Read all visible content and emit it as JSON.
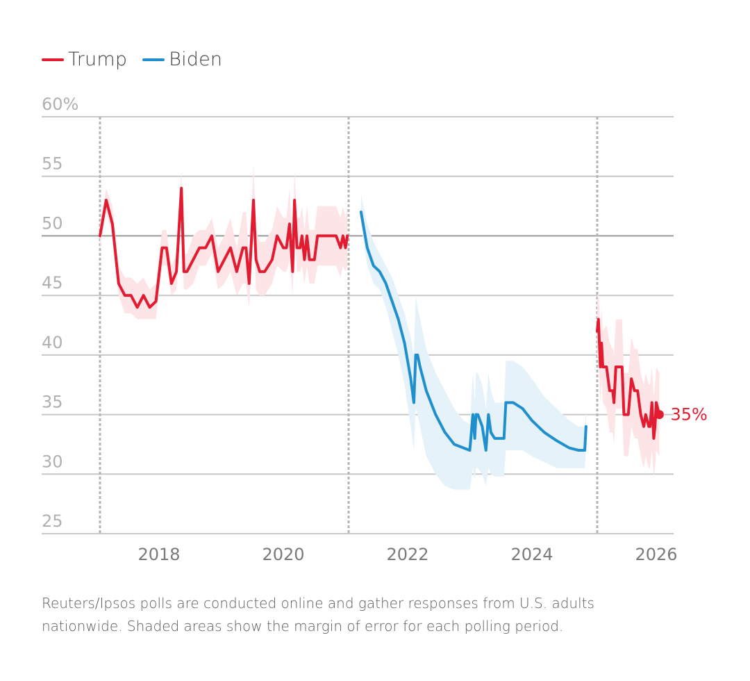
{
  "legend": {
    "items": [
      {
        "name": "Trump",
        "color": "#e31b31"
      },
      {
        "name": "Biden",
        "color": "#1f8fce"
      }
    ]
  },
  "footnote": "Reuters/Ipsos polls are conducted online and gather responses from U.S. adults nationwide. Shaded areas show the margin of error for each polling period.",
  "chart_data": {
    "type": "line",
    "title": "",
    "xlabel": "",
    "ylabel": "",
    "ylim": [
      25,
      60
    ],
    "xlim": [
      2016.9,
      2026.3
    ],
    "grid": true,
    "legend_position": "top-left",
    "y_ticks": [
      {
        "value": 60,
        "label": "60%"
      },
      {
        "value": 55,
        "label": "55"
      },
      {
        "value": 50,
        "label": "50"
      },
      {
        "value": 45,
        "label": "45"
      },
      {
        "value": 40,
        "label": "40"
      },
      {
        "value": 35,
        "label": "35"
      },
      {
        "value": 30,
        "label": "30"
      },
      {
        "value": 25,
        "label": "25"
      }
    ],
    "x_ticks": [
      {
        "value": 2018,
        "label": "2018"
      },
      {
        "value": 2020,
        "label": "2020"
      },
      {
        "value": 2022,
        "label": "2022"
      },
      {
        "value": 2024,
        "label": "2024"
      },
      {
        "value": 2026,
        "label": "2026"
      }
    ],
    "term_boundaries": [
      2017.05,
      2021.05,
      2025.05
    ],
    "end_label": {
      "series": "Trump",
      "text": "35%",
      "value": 35,
      "x": 2026.05
    },
    "series": [
      {
        "name": "Trump",
        "segment": "first-term",
        "color": "#e31b31",
        "band_color": "#fde5e7",
        "x": [
          2017.05,
          2017.15,
          2017.25,
          2017.35,
          2017.45,
          2017.55,
          2017.65,
          2017.75,
          2017.85,
          2017.95,
          2018.05,
          2018.12,
          2018.2,
          2018.28,
          2018.36,
          2018.4,
          2018.45,
          2018.55,
          2018.65,
          2018.75,
          2018.85,
          2018.95,
          2019.05,
          2019.15,
          2019.25,
          2019.35,
          2019.4,
          2019.45,
          2019.52,
          2019.56,
          2019.62,
          2019.7,
          2019.76,
          2019.82,
          2019.9,
          2020.0,
          2020.05,
          2020.1,
          2020.15,
          2020.18,
          2020.22,
          2020.27,
          2020.3,
          2020.34,
          2020.38,
          2020.42,
          2020.46,
          2020.5,
          2020.55,
          2020.62,
          2020.7,
          2020.78,
          2020.85,
          2020.92,
          2020.96,
          2021.0,
          2021.03
        ],
        "y": [
          50,
          53,
          51,
          46,
          45,
          45,
          44,
          45,
          44,
          44.5,
          49,
          49,
          46,
          47,
          54,
          47,
          47,
          48,
          49,
          49,
          50,
          47,
          48,
          49,
          47,
          49,
          49,
          46,
          53,
          48,
          47,
          47,
          47.5,
          48,
          50,
          49,
          49,
          51,
          47,
          53,
          49,
          49,
          50,
          48,
          50,
          48,
          48,
          48,
          50,
          50,
          50,
          50,
          50,
          49,
          50,
          49,
          50
        ],
        "lower": [
          49,
          52,
          50,
          45,
          43.5,
          43.5,
          43,
          43,
          43,
          43,
          47.5,
          47.5,
          45,
          45.5,
          52,
          45.5,
          45.5,
          46,
          47.5,
          47.5,
          48.5,
          45.5,
          46,
          47,
          45,
          46,
          46,
          44,
          50,
          45.5,
          45,
          45,
          45.5,
          46,
          47.5,
          47,
          47,
          48,
          45,
          50,
          47,
          47,
          47.5,
          46,
          47.5,
          46,
          46,
          46,
          47.5,
          47.5,
          47.5,
          47.5,
          47.5,
          46.5,
          47.5,
          47,
          47.5
        ],
        "upper": [
          51,
          54,
          52.5,
          47.5,
          46.5,
          46.5,
          46,
          46.5,
          45.5,
          46,
          50.5,
          50.5,
          47.5,
          48.5,
          55.5,
          48.5,
          48.5,
          50,
          50.5,
          50.5,
          51.5,
          49,
          50,
          51.5,
          49,
          52,
          52,
          48.5,
          56,
          50.5,
          49.5,
          49.5,
          50,
          50.5,
          52.5,
          51.5,
          51.5,
          54,
          49.5,
          55.5,
          51.5,
          51.5,
          52.5,
          50.5,
          52.5,
          50.5,
          50.5,
          50.5,
          52.5,
          52.5,
          52.5,
          52.5,
          52.5,
          51.5,
          52.5,
          51.5,
          52.5
        ]
      },
      {
        "name": "Biden",
        "segment": "term",
        "color": "#1f8fce",
        "band_color": "#e6f2fa",
        "x": [
          2021.25,
          2021.35,
          2021.45,
          2021.55,
          2021.65,
          2021.75,
          2021.85,
          2021.95,
          2022.05,
          2022.1,
          2022.13,
          2022.16,
          2022.2,
          2022.3,
          2022.45,
          2022.6,
          2022.75,
          2022.9,
          2023.0,
          2023.05,
          2023.08,
          2023.1,
          2023.13,
          2023.2,
          2023.26,
          2023.3,
          2023.34,
          2023.4,
          2023.48,
          2023.55,
          2023.58,
          2023.7,
          2023.85,
          2024.0,
          2024.2,
          2024.4,
          2024.6,
          2024.75,
          2024.85,
          2024.87
        ],
        "y": [
          52,
          49,
          47.5,
          47,
          46,
          44.5,
          43,
          41,
          38,
          36,
          40,
          40,
          39,
          37,
          35,
          33.5,
          32.5,
          32.2,
          32,
          35,
          33,
          35,
          35,
          34,
          32,
          35,
          33.5,
          33,
          33,
          33,
          36,
          36,
          35.5,
          34.5,
          33.5,
          32.8,
          32.2,
          32,
          32,
          34
        ],
        "lower": [
          51,
          47.5,
          46,
          45.5,
          44,
          42,
          40,
          37.5,
          34,
          32,
          35.5,
          35,
          34,
          31.5,
          30,
          29,
          28.7,
          28.7,
          28.7,
          30.5,
          29.5,
          30.5,
          30.5,
          30,
          29,
          30.5,
          30,
          29.8,
          29.8,
          29.8,
          32,
          32,
          32,
          31.5,
          31,
          30.5,
          30.5,
          30.5,
          30.5,
          32
        ],
        "upper": [
          53.5,
          51,
          49.5,
          48.5,
          47.5,
          46.5,
          45,
          43.5,
          41.5,
          40,
          45,
          44,
          43,
          40.5,
          38.5,
          37,
          35.5,
          34.5,
          34.2,
          38.5,
          36,
          38.5,
          38.5,
          37.5,
          35.5,
          38.5,
          37,
          36,
          36,
          36,
          39.5,
          39.5,
          39,
          38,
          36.5,
          35.5,
          34.5,
          34,
          34,
          35.5
        ]
      },
      {
        "name": "Trump",
        "segment": "second-term",
        "color": "#e31b31",
        "band_color": "#fde5e7",
        "x": [
          2025.05,
          2025.07,
          2025.1,
          2025.12,
          2025.14,
          2025.2,
          2025.25,
          2025.3,
          2025.32,
          2025.35,
          2025.45,
          2025.48,
          2025.55,
          2025.6,
          2025.65,
          2025.7,
          2025.75,
          2025.8,
          2025.83,
          2025.88,
          2025.9,
          2025.93,
          2025.96,
          2025.98,
          2026.0,
          2026.05
        ],
        "y": [
          42,
          43,
          39,
          41,
          39,
          39,
          37,
          37,
          36,
          39,
          39,
          35,
          35,
          38,
          37,
          37,
          35,
          34,
          35,
          34,
          34,
          36,
          33,
          34,
          36,
          35
        ],
        "lower": [
          39.5,
          40,
          36,
          38,
          36,
          35.5,
          33.5,
          33.5,
          32.5,
          35.5,
          35.5,
          31.5,
          31.5,
          34,
          33,
          33,
          31.5,
          30.5,
          31.5,
          30.5,
          30.5,
          32,
          29.8,
          30.5,
          32,
          31.5
        ],
        "upper": [
          44.5,
          45.5,
          42,
          44,
          42,
          42.5,
          41,
          40.5,
          40,
          43,
          43,
          38.5,
          38.5,
          41.5,
          40.5,
          40.5,
          38.5,
          37.5,
          38.5,
          37.5,
          37.5,
          39,
          36.5,
          37.5,
          39,
          38.5
        ]
      }
    ]
  }
}
